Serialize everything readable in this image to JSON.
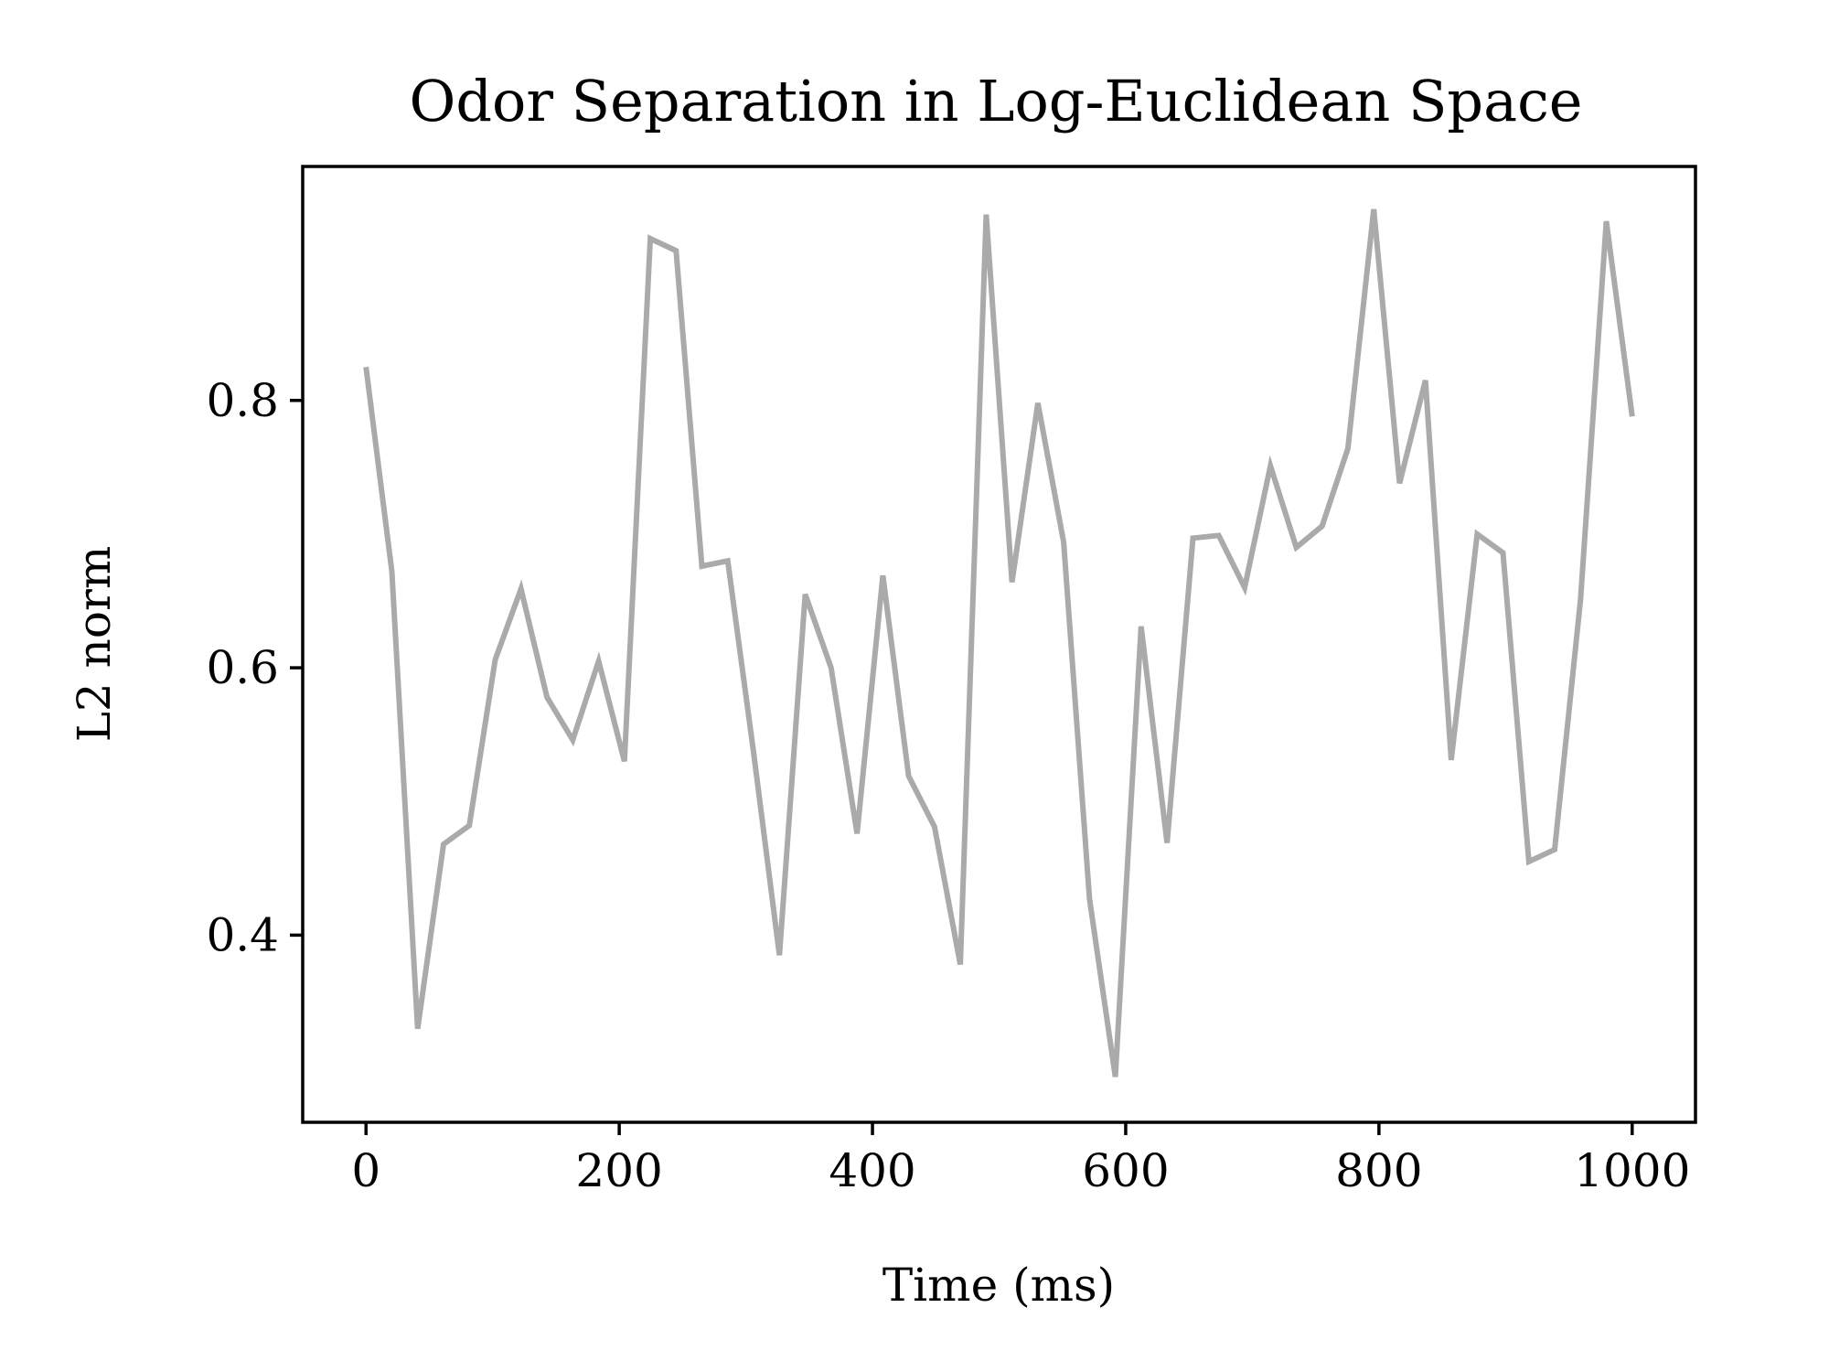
{
  "chart_data": {
    "type": "line",
    "title": "Odor Separation in Log-Euclidean Space",
    "xlabel": "Time (ms)",
    "ylabel": "L2 norm",
    "xlim": [
      -50,
      1050
    ],
    "ylim": [
      0.26,
      0.975
    ],
    "xticks": [
      0,
      200,
      400,
      600,
      800,
      1000
    ],
    "xtick_labels": [
      "0",
      "200",
      "400",
      "600",
      "800",
      "1000"
    ],
    "yticks": [
      0.4,
      0.6,
      0.8
    ],
    "ytick_labels": [
      "0.4",
      "0.6",
      "0.8"
    ],
    "grid": false,
    "series": [
      {
        "color": "#aaaaaa",
        "x": [
          0,
          20.4,
          40.8,
          61.2,
          81.6,
          102.0,
          122.4,
          142.9,
          163.3,
          183.7,
          204.1,
          224.5,
          244.9,
          265.3,
          285.7,
          306.1,
          326.5,
          346.9,
          367.3,
          387.8,
          408.2,
          428.6,
          449.0,
          469.4,
          489.8,
          510.2,
          530.6,
          551.0,
          571.4,
          591.8,
          612.2,
          632.7,
          653.1,
          673.5,
          693.9,
          714.3,
          734.7,
          755.1,
          775.5,
          795.9,
          816.3,
          836.7,
          857.1,
          877.6,
          898.0,
          918.4,
          938.8,
          959.2,
          979.6,
          1000.0
        ],
        "y": [
          0.825,
          0.672,
          0.33,
          0.468,
          0.482,
          0.606,
          0.659,
          0.578,
          0.546,
          0.605,
          0.53,
          0.921,
          0.912,
          0.676,
          0.68,
          0.537,
          0.385,
          0.655,
          0.6,
          0.476,
          0.669,
          0.519,
          0.481,
          0.378,
          0.939,
          0.664,
          0.798,
          0.694,
          0.427,
          0.294,
          0.631,
          0.469,
          0.697,
          0.699,
          0.66,
          0.751,
          0.69,
          0.706,
          0.764,
          0.943,
          0.738,
          0.815,
          0.531,
          0.7,
          0.686,
          0.455,
          0.464,
          0.651,
          0.934,
          0.788
        ]
      }
    ]
  }
}
